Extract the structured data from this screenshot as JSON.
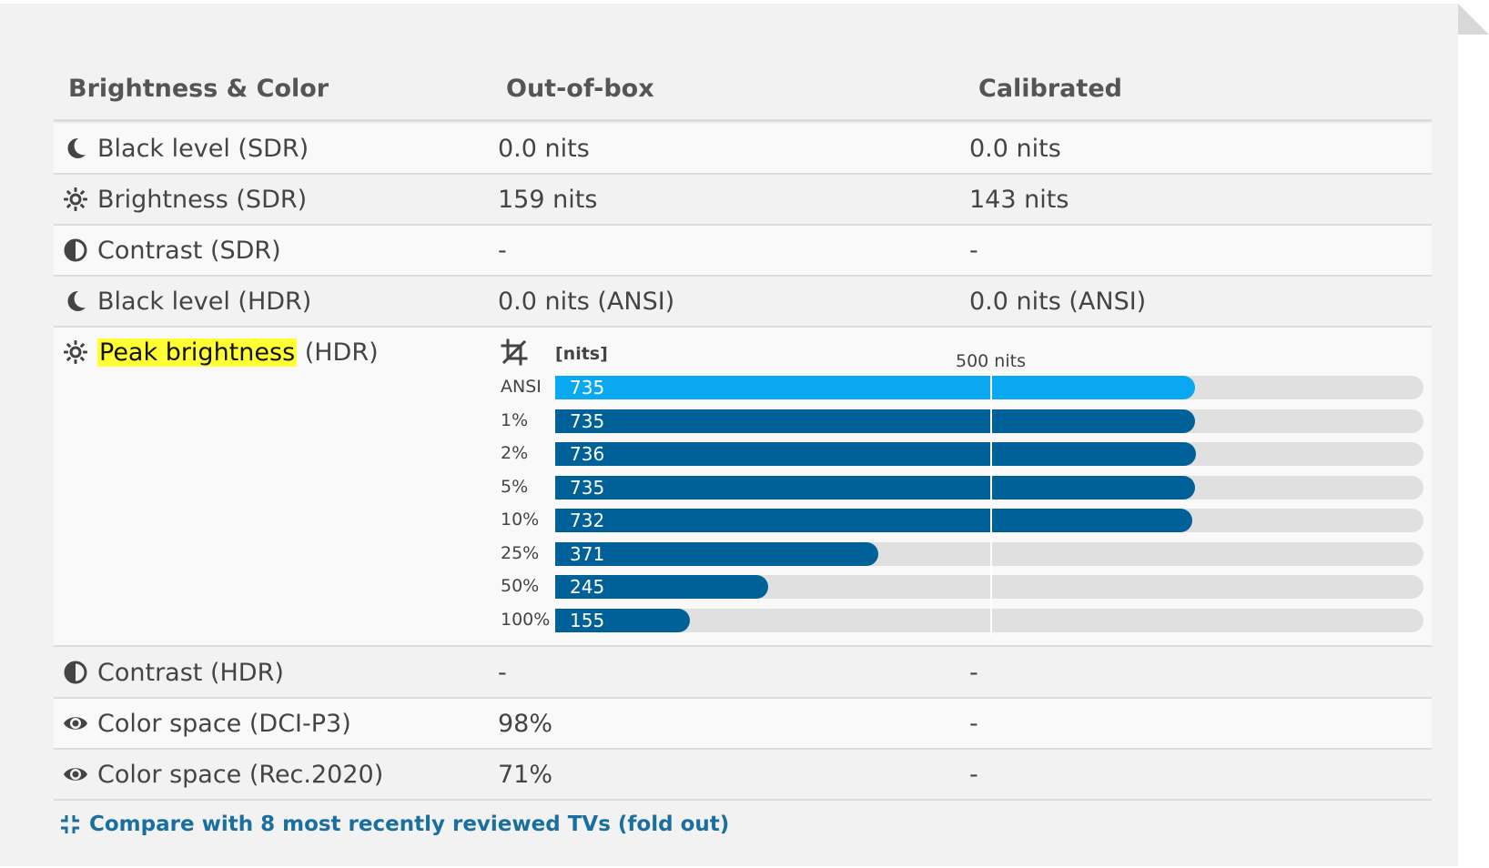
{
  "table": {
    "headers": {
      "metric": "Brightness & Color",
      "out_of_box": "Out-of-box",
      "calibrated": "Calibrated"
    },
    "rows": [
      {
        "icon": "moon-icon",
        "label": "Black level (SDR)",
        "out_of_box": "0.0 nits",
        "calibrated": "0.0 nits"
      },
      {
        "icon": "sun-icon",
        "label": "Brightness (SDR)",
        "out_of_box": "159 nits",
        "calibrated": "143 nits"
      },
      {
        "icon": "contrast-icon",
        "label": "Contrast (SDR)",
        "out_of_box": "-",
        "calibrated": "-"
      },
      {
        "icon": "moon-icon",
        "label": "Black level (HDR)",
        "out_of_box": "0.0 nits (ANSI)",
        "calibrated": "0.0 nits (ANSI)"
      }
    ],
    "peak": {
      "icon": "sun-icon",
      "label_highlight": "Peak brightness",
      "label_rest": " (HDR)"
    },
    "rows_after": [
      {
        "icon": "contrast-icon",
        "label": "Contrast (HDR)",
        "out_of_box": "-",
        "calibrated": "-"
      },
      {
        "icon": "eye-icon",
        "label": "Color space (DCI-P3)",
        "out_of_box": "98%",
        "calibrated": "-"
      },
      {
        "icon": "eye-icon",
        "label": "Color space (Rec.2020)",
        "out_of_box": "71%",
        "calibrated": "-"
      }
    ]
  },
  "chart_data": {
    "type": "bar",
    "orientation": "horizontal",
    "unit_label": "[nits]",
    "reference_label": "500 nits",
    "reference_value": 500,
    "xlim": [
      0,
      1040
    ],
    "categories": [
      "ANSI",
      "1%",
      "2%",
      "5%",
      "10%",
      "25%",
      "50%",
      "100%"
    ],
    "values": [
      735,
      735,
      736,
      735,
      732,
      371,
      245,
      155
    ],
    "colors": [
      "#0aa8f0",
      "#006199",
      "#006199",
      "#006199",
      "#006199",
      "#006199",
      "#006199",
      "#006199"
    ]
  },
  "compare_link": {
    "label": "Compare with 8 most recently reviewed TVs (fold out)"
  },
  "colors": {
    "panel_bg": "#f2f2f2",
    "highlight": "#ffff33",
    "link": "#1a6f9e"
  }
}
